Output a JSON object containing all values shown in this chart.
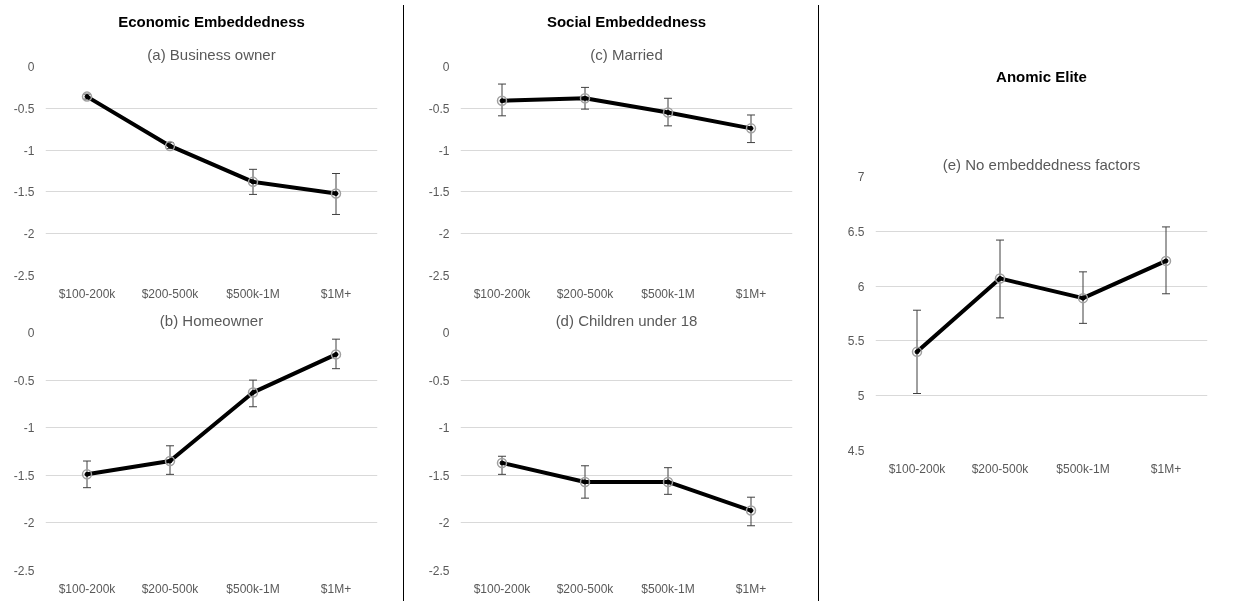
{
  "chart_data": [
    {
      "type": "line",
      "title": "Economic Embeddedness",
      "subtitle": "(a) Business owner",
      "categories": [
        "$100-200k",
        "$200-500k",
        "$500k-1M",
        "$1M+"
      ],
      "series": [
        {
          "color": "#000000",
          "values": [
            -0.36,
            -0.95,
            -1.38,
            -1.52
          ],
          "errors": [
            [
              -0.39,
              -0.33
            ],
            [
              -0.98,
              -0.91
            ],
            [
              -1.53,
              -1.23
            ],
            [
              -1.77,
              -1.28
            ]
          ]
        }
      ],
      "ylim": [
        -2.5,
        0
      ],
      "yticks": [
        0,
        -0.5,
        -1,
        -1.5,
        -2,
        -2.5
      ],
      "grid": "y",
      "marker": "circle",
      "line_style": "solid"
    },
    {
      "type": "line",
      "title": "(b) Homeowner",
      "categories": [
        "$100-200k",
        "$200-500k",
        "$500k-1M",
        "$1M+"
      ],
      "series": [
        {
          "color": "#000000",
          "values": [
            -1.49,
            -1.35,
            -0.63,
            -0.23
          ],
          "errors": [
            [
              -1.63,
              -1.35
            ],
            [
              -1.49,
              -1.19
            ],
            [
              -0.78,
              -0.5
            ],
            [
              -0.38,
              -0.07
            ]
          ]
        }
      ],
      "ylim": [
        -2.5,
        0
      ],
      "yticks": [
        0,
        -0.5,
        -1,
        -1.5,
        -2,
        -2.5
      ],
      "grid": "y",
      "marker": "circle",
      "line_style": "solid"
    },
    {
      "type": "line",
      "title": "Social Embeddedness",
      "subtitle": "(c) Married",
      "categories": [
        "$100-200k",
        "$200-500k",
        "$500k-1M",
        "$1M+"
      ],
      "series": [
        {
          "color": "#000000",
          "values": [
            -0.41,
            -0.38,
            -0.55,
            -0.74
          ],
          "errors": [
            [
              -0.59,
              -0.21
            ],
            [
              -0.51,
              -0.25
            ],
            [
              -0.71,
              -0.38
            ],
            [
              -0.91,
              -0.58
            ]
          ]
        }
      ],
      "ylim": [
        -2.5,
        0
      ],
      "yticks": [
        0,
        -0.5,
        -1,
        -1.5,
        -2,
        -2.5
      ],
      "grid": "y",
      "marker": "circle",
      "line_style": "solid"
    },
    {
      "type": "line",
      "title": "(d) Children under 18",
      "categories": [
        "$100-200k",
        "$200-500k",
        "$500k-1M",
        "$1M+"
      ],
      "series": [
        {
          "color": "#000000",
          "values": [
            -1.37,
            -1.57,
            -1.57,
            -1.87
          ],
          "errors": [
            [
              -1.49,
              -1.3
            ],
            [
              -1.74,
              -1.4
            ],
            [
              -1.7,
              -1.42
            ],
            [
              -2.03,
              -1.73
            ]
          ]
        }
      ],
      "ylim": [
        -2.5,
        0
      ],
      "yticks": [
        0,
        -0.5,
        -1,
        -1.5,
        -2,
        -2.5
      ],
      "grid": "y",
      "marker": "circle",
      "line_style": "solid"
    },
    {
      "type": "line",
      "title": "Anomic Elite",
      "subtitle": "(e) No embeddedness factors",
      "categories": [
        "$100-200k",
        "$200-500k",
        "$500k-1M",
        "$1M+"
      ],
      "series": [
        {
          "color": "#000000",
          "values": [
            5.4,
            6.07,
            5.89,
            6.23
          ],
          "errors": [
            [
              5.02,
              5.78
            ],
            [
              5.71,
              6.42
            ],
            [
              5.66,
              6.13
            ],
            [
              5.93,
              6.54
            ]
          ]
        }
      ],
      "ylim": [
        4.5,
        7
      ],
      "yticks": [
        7,
        6.5,
        6,
        5.5,
        5,
        4.5
      ],
      "grid": "y",
      "marker": "circle",
      "line_style": "solid"
    }
  ]
}
